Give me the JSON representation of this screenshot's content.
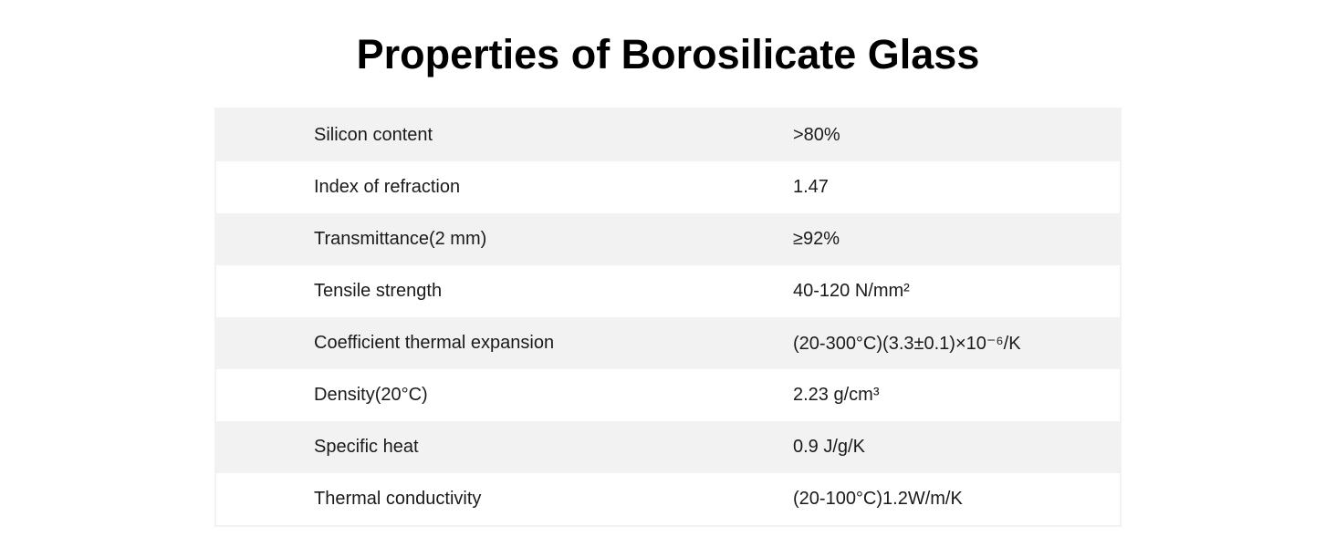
{
  "title": "Properties of Borosilicate Glass",
  "table": {
    "rows": [
      {
        "property": "Silicon content",
        "value": ">80%"
      },
      {
        "property": "Index of refraction",
        "value": "1.47"
      },
      {
        "property": "Transmittance(2 mm)",
        "value": "≥92%"
      },
      {
        "property": "Tensile strength",
        "value": "40-120 N/mm²"
      },
      {
        "property": "Coefficient thermal expansion",
        "value": "(20-300°C)(3.3±0.1)×10⁻⁶/K"
      },
      {
        "property": "Density(20°C)",
        "value": "2.23 g/cm³"
      },
      {
        "property": "Specific heat",
        "value": "0.9 J/g/K"
      },
      {
        "property": "Thermal conductivity",
        "value": "(20-100°C)1.2W/m/K"
      }
    ],
    "colors": {
      "row_alt_bg": "#f2f2f2",
      "row_bg": "#ffffff",
      "border": "#f2f2f2",
      "text": "#1a1a1a",
      "title": "#000000"
    }
  }
}
